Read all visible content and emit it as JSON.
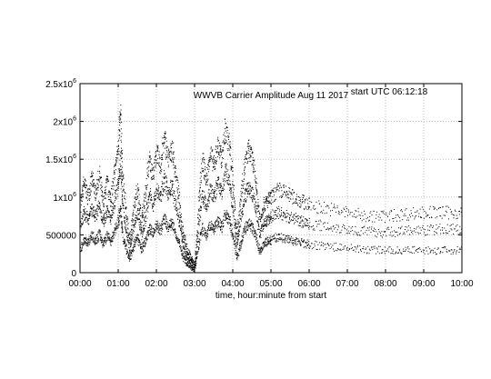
{
  "chart_data": {
    "type": "scatter",
    "title": "WWVB Carrier Amplitude Aug 11 2017",
    "annotation": "start UTC 06:12:18",
    "xlabel": "time, hour:minute from start",
    "ylabel": "",
    "xlim": [
      0,
      10
    ],
    "ylim": [
      0,
      2500000
    ],
    "grid": true,
    "x_tick_labels": [
      "00:00",
      "01:00",
      "02:00",
      "03:00",
      "04:00",
      "05:00",
      "06:00",
      "07:00",
      "08:00",
      "09:00",
      "10:00"
    ],
    "y_ticks": [
      {
        "value": 0,
        "base": "0",
        "exp": ""
      },
      {
        "value": 500000,
        "base": "500000",
        "exp": ""
      },
      {
        "value": 1000000,
        "base": "1x10",
        "exp": "6"
      },
      {
        "value": 1500000,
        "base": "1.5x10",
        "exp": "6"
      },
      {
        "value": 2000000,
        "base": "2x10",
        "exp": "6"
      },
      {
        "value": 2500000,
        "base": "2.5x10",
        "exp": "6"
      }
    ],
    "marker_color": "#000000",
    "series": [
      {
        "x": [
          0,
          0.1,
          0.2,
          0.3,
          0.4,
          0.5,
          0.6,
          0.7,
          0.8,
          0.9,
          1.0,
          1.05,
          1.1,
          1.2,
          1.3,
          1.4,
          1.5,
          1.6,
          1.7,
          1.8,
          1.9,
          2.0,
          2.1,
          2.2,
          2.3,
          2.4,
          2.5,
          2.6,
          2.7,
          2.8,
          2.9,
          3.0,
          3.1,
          3.2,
          3.3,
          3.4,
          3.5,
          3.6,
          3.7,
          3.8,
          3.9,
          4.0,
          4.1,
          4.2,
          4.3,
          4.4,
          4.5,
          4.6,
          4.7,
          4.8,
          4.9,
          5.0,
          5.2,
          5.4,
          5.6,
          5.8,
          6.0,
          6.5,
          7.0,
          7.5,
          8.0,
          8.5,
          9.0,
          9.5,
          10.0
        ],
        "values": [
          900000,
          1200000,
          1000000,
          1250000,
          1050000,
          1300000,
          900000,
          1200000,
          950000,
          1350000,
          1700000,
          2100000,
          1300000,
          800000,
          400000,
          900000,
          1100000,
          700000,
          1000000,
          1500000,
          1300000,
          1600000,
          1400000,
          1800000,
          1500000,
          1650000,
          1300000,
          900000,
          500000,
          300000,
          200000,
          100000,
          900000,
          1500000,
          1200000,
          1600000,
          1400000,
          1700000,
          1500000,
          1900000,
          1700000,
          1200000,
          500000,
          1000000,
          1400000,
          1650000,
          1500000,
          1200000,
          700000,
          900000,
          950000,
          1000000,
          1100000,
          1050000,
          1000000,
          950000,
          900000,
          850000,
          800000,
          750000,
          750000,
          780000,
          800000,
          800000,
          800000
        ]
      },
      {
        "x": [
          0,
          0.1,
          0.2,
          0.3,
          0.4,
          0.5,
          0.6,
          0.7,
          0.8,
          0.9,
          1.0,
          1.05,
          1.1,
          1.2,
          1.3,
          1.4,
          1.5,
          1.6,
          1.7,
          1.8,
          1.9,
          2.0,
          2.1,
          2.2,
          2.3,
          2.4,
          2.5,
          2.6,
          2.7,
          2.8,
          2.9,
          3.0,
          3.1,
          3.2,
          3.3,
          3.4,
          3.5,
          3.6,
          3.7,
          3.8,
          3.9,
          4.0,
          4.1,
          4.2,
          4.3,
          4.4,
          4.5,
          4.6,
          4.7,
          4.8,
          4.9,
          5.0,
          5.2,
          5.4,
          5.6,
          5.8,
          6.0,
          6.5,
          7.0,
          7.5,
          8.0,
          8.5,
          9.0,
          9.5,
          10.0
        ],
        "values": [
          600000,
          800000,
          700000,
          850000,
          750000,
          900000,
          650000,
          850000,
          700000,
          950000,
          1200000,
          1500000,
          900000,
          550000,
          300000,
          650000,
          800000,
          500000,
          700000,
          1050000,
          900000,
          1100000,
          1000000,
          1250000,
          1050000,
          1150000,
          900000,
          650000,
          350000,
          200000,
          150000,
          80000,
          650000,
          1050000,
          850000,
          1100000,
          1000000,
          1200000,
          1050000,
          1350000,
          1200000,
          850000,
          350000,
          700000,
          1000000,
          1150000,
          1050000,
          850000,
          500000,
          650000,
          700000,
          750000,
          800000,
          750000,
          720000,
          680000,
          650000,
          620000,
          580000,
          550000,
          540000,
          560000,
          570000,
          580000,
          580000
        ]
      },
      {
        "x": [
          0,
          0.1,
          0.2,
          0.3,
          0.4,
          0.5,
          0.6,
          0.7,
          0.8,
          0.9,
          1.0,
          1.05,
          1.1,
          1.2,
          1.3,
          1.4,
          1.5,
          1.6,
          1.7,
          1.8,
          1.9,
          2.0,
          2.1,
          2.2,
          2.3,
          2.4,
          2.5,
          2.6,
          2.7,
          2.8,
          2.9,
          3.0,
          3.1,
          3.2,
          3.3,
          3.4,
          3.5,
          3.6,
          3.7,
          3.8,
          3.9,
          4.0,
          4.1,
          4.2,
          4.3,
          4.4,
          4.5,
          4.6,
          4.7,
          4.8,
          4.9,
          5.0,
          5.2,
          5.4,
          5.6,
          5.8,
          6.0,
          6.5,
          7.0,
          7.5,
          8.0,
          8.5,
          9.0,
          9.5,
          10.0
        ],
        "values": [
          300000,
          450000,
          400000,
          500000,
          420000,
          520000,
          380000,
          500000,
          420000,
          560000,
          700000,
          850000,
          520000,
          320000,
          180000,
          380000,
          460000,
          300000,
          420000,
          600000,
          520000,
          640000,
          560000,
          720000,
          600000,
          660000,
          520000,
          380000,
          200000,
          120000,
          80000,
          50000,
          380000,
          600000,
          480000,
          640000,
          560000,
          700000,
          600000,
          780000,
          700000,
          480000,
          200000,
          400000,
          580000,
          660000,
          600000,
          480000,
          280000,
          380000,
          420000,
          440000,
          480000,
          450000,
          420000,
          400000,
          380000,
          350000,
          330000,
          310000,
          300000,
          300000,
          300000,
          300000,
          300000
        ]
      }
    ]
  }
}
